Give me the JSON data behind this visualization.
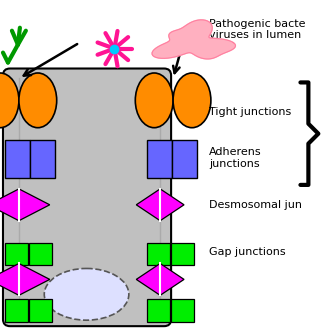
{
  "bg_color": "#ffffff",
  "cell_color": "#c0c0c0",
  "cell_border_color": "#000000",
  "orange_color": "#FF8C00",
  "blue_color": "#6666FF",
  "magenta_color": "#FF00FF",
  "green_color": "#00EE00",
  "text_color": "#000000",
  "title": "Pathogenic bacte\nviruses in lumen",
  "label_tight": "Tight junctions",
  "label_adherens": "Adherens\njunctions",
  "label_desmosomal": "Desmosomal jun",
  "label_gap": "Gap junctions"
}
